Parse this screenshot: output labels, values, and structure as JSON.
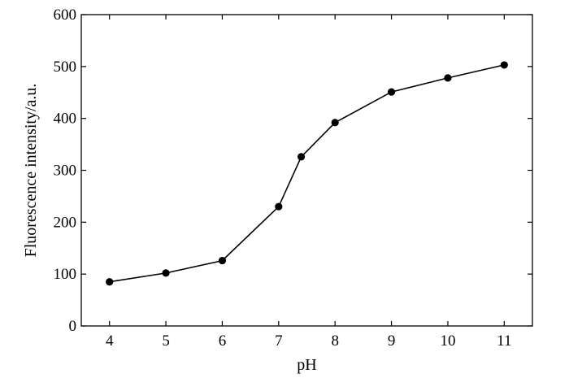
{
  "chart_data": {
    "type": "line",
    "xlabel": "pH",
    "ylabel": "Fluorescence intensity/a.u.",
    "xlim": [
      3.5,
      11.5
    ],
    "ylim": [
      0,
      600
    ],
    "xticks": [
      "4",
      "5",
      "6",
      "7",
      "8",
      "9",
      "10",
      "11"
    ],
    "yticks": [
      "0",
      "100",
      "200",
      "300",
      "400",
      "500",
      "600"
    ],
    "grid": false,
    "series": [
      {
        "x": [
          4,
          5,
          6,
          7,
          7.4,
          8,
          9,
          10,
          11
        ],
        "y": [
          85,
          102,
          126,
          230,
          326,
          392,
          451,
          478,
          503
        ]
      }
    ],
    "colors": {
      "line": "#000000",
      "marker": "#000000"
    }
  }
}
